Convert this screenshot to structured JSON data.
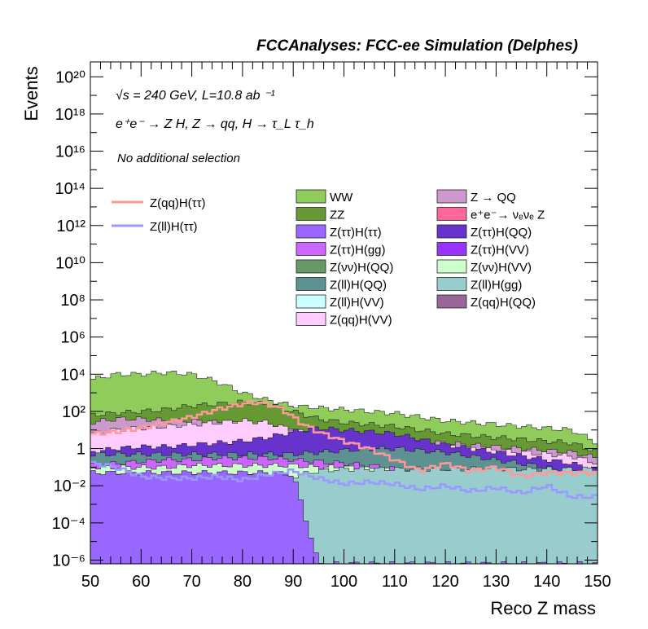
{
  "chart_data": {
    "type": "area",
    "header": "FCCAnalyses: FCC-ee Simulation (Delphes)",
    "xlabel": "Reco Z mass",
    "ylabel": "Events",
    "xlim": [
      50,
      150
    ],
    "ylim_log10": [
      -6.2,
      20.8
    ],
    "yscale": "log",
    "annotations": {
      "energy": "√s = 240 GeV, L=10.8 ab ⁻¹",
      "process": "e⁺e⁻ → Z H, Z → qq, H → τ_L τ_h",
      "selection": "No additional selection"
    },
    "x_ticks": [
      "50",
      "60",
      "70",
      "80",
      "90",
      "100",
      "110",
      "120",
      "130",
      "140",
      "150"
    ],
    "y_ticks": [
      {
        "exp": -6,
        "label": "10⁻⁶"
      },
      {
        "exp": -4,
        "label": "10⁻⁴"
      },
      {
        "exp": -2,
        "label": "10⁻²"
      },
      {
        "exp": 0,
        "label": "1"
      },
      {
        "exp": 2,
        "label": "10²"
      },
      {
        "exp": 4,
        "label": "10⁴"
      },
      {
        "exp": 6,
        "label": "10⁶"
      },
      {
        "exp": 8,
        "label": "10⁸"
      },
      {
        "exp": 10,
        "label": "10¹⁰"
      },
      {
        "exp": 12,
        "label": "10¹²"
      },
      {
        "exp": 14,
        "label": "10¹⁴"
      },
      {
        "exp": 16,
        "label": "10¹⁶"
      },
      {
        "exp": 18,
        "label": "10¹⁸"
      },
      {
        "exp": 20,
        "label": "10²⁰"
      }
    ],
    "stack_layers": [
      {
        "name": "WW",
        "color": "#8fcc5c",
        "x": [
          50,
          55,
          60,
          65,
          70,
          75,
          80,
          85,
          90,
          95,
          100,
          105,
          110,
          115,
          120,
          125,
          130,
          135,
          140,
          145,
          150
        ],
        "log10_top": [
          3.7,
          4.0,
          4.0,
          4.1,
          4.0,
          3.6,
          3.0,
          2.6,
          2.3,
          2.2,
          2.1,
          2.0,
          1.9,
          1.7,
          1.5,
          1.4,
          1.3,
          1.2,
          1.1,
          1.0,
          0.3
        ]
      },
      {
        "name": "ZZ",
        "color": "#669933",
        "x": [
          50,
          55,
          60,
          65,
          70,
          75,
          80,
          85,
          90,
          95,
          100,
          105,
          110,
          115,
          120,
          125,
          130,
          135,
          140,
          145,
          150
        ],
        "log10_top": [
          1.8,
          1.9,
          2.0,
          2.1,
          2.3,
          2.4,
          2.5,
          2.4,
          2.0,
          1.6,
          1.4,
          1.3,
          1.2,
          1.0,
          0.8,
          0.7,
          0.6,
          0.5,
          0.4,
          0.3,
          -0.2
        ]
      },
      {
        "name": "Z → QQ",
        "color": "#cc99cc",
        "x": [
          50,
          55,
          60,
          65,
          70,
          75,
          80,
          85,
          90,
          95,
          100,
          105,
          110,
          115,
          120,
          125,
          130,
          135,
          140,
          145,
          150
        ],
        "log10_top": [
          1.4,
          1.6,
          1.6,
          1.5,
          1.5,
          1.4,
          1.3,
          1.1,
          0.9,
          0.8,
          0.7,
          0.6,
          0.5,
          0.4,
          0.3,
          0.2,
          0.1,
          0.0,
          -0.1,
          -0.2,
          -0.5
        ]
      },
      {
        "name": "Z(qq)H(VV)",
        "color": "#ffccff",
        "x": [
          50,
          55,
          60,
          65,
          70,
          75,
          80,
          85,
          90,
          95,
          100,
          105,
          110,
          115,
          120,
          125,
          130,
          135,
          140,
          145,
          150
        ],
        "log10_top": [
          0.8,
          1.0,
          1.1,
          1.2,
          1.3,
          1.4,
          1.5,
          1.4,
          1.0,
          0.7,
          0.5,
          0.4,
          0.3,
          0.2,
          0.1,
          0.0,
          -0.1,
          -0.2,
          -0.3,
          -0.4,
          -0.8
        ]
      },
      {
        "name": "Z(ττ)H(QQ)",
        "color": "#6633cc",
        "x": [
          50,
          55,
          60,
          65,
          70,
          75,
          80,
          85,
          90,
          95,
          100,
          105,
          110,
          115,
          120,
          125,
          130,
          135,
          140,
          145,
          150
        ],
        "log10_top": [
          -0.2,
          0.0,
          0.1,
          0.1,
          0.2,
          0.3,
          0.4,
          0.6,
          0.9,
          1.1,
          1.0,
          0.9,
          0.8,
          0.5,
          0.2,
          0.0,
          -0.2,
          -0.4,
          -0.6,
          -0.8,
          -1.2
        ]
      },
      {
        "name": "Z(ll)H(QQ)",
        "color": "#5e9191",
        "x": [
          50,
          55,
          60,
          65,
          70,
          75,
          80,
          85,
          90,
          95,
          100,
          105,
          110,
          115,
          120,
          125,
          130,
          135,
          140,
          145,
          150
        ],
        "log10_top": [
          -0.3,
          -0.3,
          -0.3,
          -0.3,
          -0.3,
          -0.3,
          -0.3,
          -0.3,
          -0.3,
          -0.2,
          -0.1,
          0.0,
          0.0,
          -0.1,
          -0.2,
          -0.4,
          -0.6,
          -0.8,
          -1.0,
          -1.5,
          -2.0
        ]
      },
      {
        "name": "Z(ττ)H(gg)",
        "color": "#cc66ff",
        "x": [
          50,
          55,
          60,
          65,
          70,
          75,
          80,
          85,
          90,
          95,
          100,
          105,
          110,
          115,
          120,
          125,
          130,
          135,
          140,
          145,
          150
        ],
        "log10_top": [
          -0.9,
          -0.8,
          -0.7,
          -0.6,
          -0.6,
          -0.5,
          -0.5,
          -0.5,
          -0.6,
          -0.7,
          -0.8,
          -0.9,
          -1.1,
          -1.4,
          -1.7,
          -2.0,
          -2.3,
          -2.6,
          -3.0,
          -3.5,
          -4.0
        ]
      },
      {
        "name": "Z(νν)H(VV)",
        "color": "#ccffcc",
        "x": [
          50,
          55,
          60,
          65,
          70,
          75,
          80,
          85,
          90,
          95,
          100,
          105,
          110,
          115,
          120,
          125,
          130,
          135,
          140,
          145,
          150
        ],
        "log10_top": [
          -1.0,
          -1.0,
          -1.0,
          -1.0,
          -0.9,
          -0.9,
          -0.9,
          -0.9,
          -0.9,
          -1.0,
          -1.0,
          -1.1,
          -1.2,
          -1.4,
          -1.6,
          -1.8,
          -2.0,
          -2.3,
          -2.6,
          -3.0,
          -3.5
        ]
      },
      {
        "name": "Z(ll)H(gg)",
        "color": "#99cccc",
        "x": [
          50,
          55,
          60,
          65,
          70,
          75,
          80,
          85,
          90,
          95,
          100,
          105,
          110,
          115,
          120,
          125,
          130,
          135,
          140,
          145,
          150
        ],
        "log10_top": [
          -1.5,
          -1.5,
          -1.5,
          -1.5,
          -1.5,
          -1.5,
          -1.5,
          -1.5,
          -1.5,
          -1.2,
          -1.1,
          -1.1,
          -1.1,
          -1.1,
          -1.1,
          -1.1,
          -1.1,
          -1.1,
          -1.1,
          -1.1,
          -1.1
        ]
      },
      {
        "name": "Z(ττ)H(ττ)",
        "color": "#9966ff",
        "x": [
          50,
          55,
          60,
          65,
          70,
          75,
          80,
          85,
          90,
          95,
          100,
          105,
          110,
          115,
          120,
          125,
          130,
          135,
          140,
          145,
          150
        ],
        "log10_top": [
          -1.3,
          -1.3,
          -1.3,
          -1.3,
          -1.3,
          -1.3,
          -1.3,
          -1.3,
          -1.4,
          -6.2,
          -6.2,
          -6.2,
          -6.2,
          -6.2,
          -6.2,
          -6.2,
          -6.2,
          -6.2,
          -6.2,
          -6.2,
          -6.2
        ]
      }
    ],
    "curves": [
      {
        "name": "Z(qq)H(ττ)",
        "color": "#ff9999",
        "x": [
          51,
          55,
          60,
          65,
          70,
          75,
          80,
          82,
          85,
          88,
          90,
          92,
          95,
          98,
          100,
          105,
          110,
          115,
          120,
          125,
          130,
          135,
          140
        ],
        "log10_y": [
          0.8,
          0.9,
          1.1,
          1.4,
          1.7,
          2.1,
          2.4,
          2.5,
          2.4,
          2.1,
          1.7,
          1.3,
          0.9,
          0.6,
          0.4,
          0.0,
          -0.6,
          -1.2,
          -0.8,
          -1.2,
          -1.0,
          -1.5,
          -1.3
        ]
      },
      {
        "name": "Z(ll)H(ττ)",
        "color": "#9999ff",
        "x": [
          51,
          55,
          60,
          65,
          70,
          75,
          80,
          85,
          90,
          95,
          100,
          105,
          110,
          115,
          120,
          125,
          130,
          135,
          140,
          145
        ],
        "log10_y": [
          -0.8,
          -1.0,
          -1.5,
          -1.6,
          -1.6,
          -1.5,
          -1.7,
          -1.4,
          -1.2,
          -1.6,
          -1.9,
          -1.8,
          -1.9,
          -2.2,
          -2.0,
          -2.3,
          -2.1,
          -2.4,
          -2.0,
          -2.6
        ]
      }
    ],
    "legend": {
      "curves": [
        {
          "label": "Z(qq)H(ττ)",
          "color": "#ff9999"
        },
        {
          "label": "Z(ll)H(ττ)",
          "color": "#9999ff"
        }
      ],
      "col1": [
        {
          "label": "WW",
          "color": "#8fcc5c"
        },
        {
          "label": "ZZ",
          "color": "#669933"
        },
        {
          "label": "Z(ττ)H(ττ)",
          "color": "#9966ff"
        },
        {
          "label": "Z(ττ)H(gg)",
          "color": "#cc66ff"
        },
        {
          "label": "Z(νν)H(QQ)",
          "color": "#669966"
        },
        {
          "label": "Z(ll)H(QQ)",
          "color": "#5e9191"
        },
        {
          "label": "Z(ll)H(VV)",
          "color": "#ccffff"
        },
        {
          "label": "Z(qq)H(VV)",
          "color": "#ffccff"
        }
      ],
      "col2": [
        {
          "label": "Z → QQ",
          "color": "#cc99cc"
        },
        {
          "label": "e⁺e⁻→ νₑνₑ Z",
          "color": "#ff6699"
        },
        {
          "label": "Z(ττ)H(QQ)",
          "color": "#6633cc"
        },
        {
          "label": "Z(ττ)H(VV)",
          "color": "#9933ff"
        },
        {
          "label": "Z(νν)H(VV)",
          "color": "#ccffcc"
        },
        {
          "label": "Z(ll)H(gg)",
          "color": "#99cccc"
        },
        {
          "label": "Z(qq)H(QQ)",
          "color": "#996699"
        }
      ]
    }
  }
}
